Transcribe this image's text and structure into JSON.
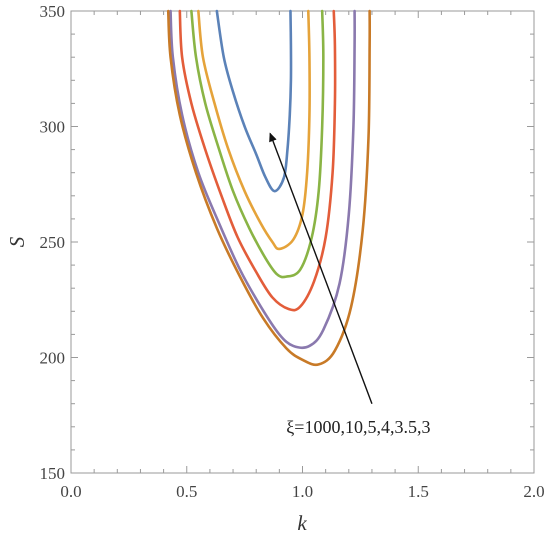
{
  "chart_data": {
    "type": "line",
    "title": "",
    "xlabel": "k",
    "ylabel": "S",
    "xlim": [
      0.0,
      2.0
    ],
    "ylim": [
      150,
      350
    ],
    "xticks": [
      0.0,
      0.5,
      1.0,
      1.5,
      2.0
    ],
    "xtick_labels": [
      "0.0",
      "0.5",
      "1.0",
      "1.5",
      "2.0"
    ],
    "yticks": [
      150,
      200,
      250,
      300,
      350
    ],
    "ytick_labels": [
      "150",
      "200",
      "250",
      "300",
      "350"
    ],
    "grid": false,
    "legend": "none",
    "annotation": {
      "text": "ξ=1000,10,5,4,3.5,3",
      "arrow_from": [
        1.3,
        180
      ],
      "arrow_to": [
        0.86,
        297
      ]
    },
    "series": [
      {
        "color": "#5b82b8",
        "points": [
          [
            0.63,
            350
          ],
          [
            0.66,
            330
          ],
          [
            0.7,
            315
          ],
          [
            0.75,
            300
          ],
          [
            0.8,
            288
          ],
          [
            0.84,
            278
          ],
          [
            0.88,
            272
          ],
          [
            0.92,
            278
          ],
          [
            0.935,
            290
          ],
          [
            0.945,
            305
          ],
          [
            0.95,
            320
          ],
          [
            0.95,
            335
          ],
          [
            0.948,
            350
          ]
        ]
      },
      {
        "color": "#e5a33a",
        "points": [
          [
            0.55,
            350
          ],
          [
            0.57,
            330
          ],
          [
            0.62,
            310
          ],
          [
            0.68,
            290
          ],
          [
            0.75,
            272
          ],
          [
            0.82,
            258
          ],
          [
            0.87,
            250
          ],
          [
            0.9,
            247
          ],
          [
            0.96,
            251
          ],
          [
            1.0,
            262
          ],
          [
            1.02,
            280
          ],
          [
            1.03,
            305
          ],
          [
            1.03,
            330
          ],
          [
            1.025,
            350
          ]
        ]
      },
      {
        "color": "#8ab445",
        "points": [
          [
            0.52,
            350
          ],
          [
            0.54,
            330
          ],
          [
            0.58,
            310
          ],
          [
            0.64,
            290
          ],
          [
            0.7,
            272
          ],
          [
            0.77,
            256
          ],
          [
            0.84,
            243
          ],
          [
            0.89,
            236
          ],
          [
            0.93,
            235
          ],
          [
            0.99,
            238
          ],
          [
            1.04,
            252
          ],
          [
            1.07,
            272
          ],
          [
            1.085,
            300
          ],
          [
            1.09,
            330
          ],
          [
            1.085,
            350
          ]
        ]
      },
      {
        "color": "#e35d3a",
        "points": [
          [
            0.47,
            350
          ],
          [
            0.48,
            330
          ],
          [
            0.52,
            310
          ],
          [
            0.58,
            290
          ],
          [
            0.65,
            270
          ],
          [
            0.72,
            252
          ],
          [
            0.8,
            237
          ],
          [
            0.87,
            226
          ],
          [
            0.94,
            221
          ],
          [
            0.99,
            222
          ],
          [
            1.05,
            233
          ],
          [
            1.1,
            252
          ],
          [
            1.13,
            280
          ],
          [
            1.14,
            310
          ],
          [
            1.14,
            335
          ],
          [
            1.135,
            350
          ]
        ]
      },
      {
        "color": "#8a79ae",
        "points": [
          [
            0.43,
            350
          ],
          [
            0.44,
            330
          ],
          [
            0.48,
            305
          ],
          [
            0.55,
            280
          ],
          [
            0.64,
            258
          ],
          [
            0.73,
            238
          ],
          [
            0.82,
            222
          ],
          [
            0.9,
            210
          ],
          [
            0.96,
            205
          ],
          [
            1.03,
            205
          ],
          [
            1.09,
            212
          ],
          [
            1.16,
            232
          ],
          [
            1.2,
            262
          ],
          [
            1.22,
            300
          ],
          [
            1.225,
            335
          ],
          [
            1.225,
            350
          ]
        ]
      },
      {
        "color": "#c87a27",
        "points": [
          [
            0.42,
            350
          ],
          [
            0.43,
            330
          ],
          [
            0.47,
            305
          ],
          [
            0.54,
            280
          ],
          [
            0.63,
            256
          ],
          [
            0.73,
            235
          ],
          [
            0.83,
            217
          ],
          [
            0.93,
            204
          ],
          [
            1.0,
            199
          ],
          [
            1.07,
            197
          ],
          [
            1.14,
            203
          ],
          [
            1.21,
            222
          ],
          [
            1.26,
            255
          ],
          [
            1.285,
            295
          ],
          [
            1.29,
            335
          ],
          [
            1.29,
            350
          ]
        ]
      }
    ]
  }
}
